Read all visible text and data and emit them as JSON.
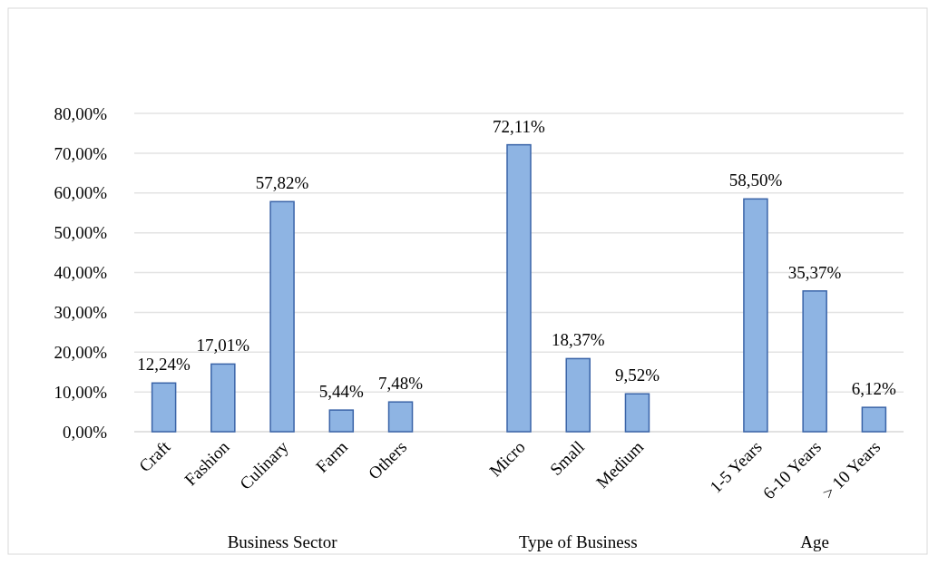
{
  "chart_data": {
    "type": "bar",
    "categories": [
      "Craft",
      "Fashion",
      "Culinary",
      "Farm",
      "Others",
      null,
      "Micro",
      "Small",
      "Medium",
      null,
      "1-5 Years",
      "6-10 Years",
      "> 10 Years"
    ],
    "values": [
      12.24,
      17.01,
      57.82,
      5.44,
      7.48,
      null,
      72.11,
      18.37,
      9.52,
      null,
      58.5,
      35.37,
      6.12
    ],
    "value_labels": [
      "12,24%",
      "17,01%",
      "57,82%",
      "5,44%",
      "7,48%",
      null,
      "72,11%",
      "18,37%",
      "9,52%",
      null,
      "58,50%",
      "35,37%",
      "6,12%"
    ],
    "color": "#8eb4e3",
    "ylim": [
      0,
      80
    ],
    "yticks": [
      {
        "value": 0,
        "label": "0,00%"
      },
      {
        "value": 10,
        "label": "10,00%"
      },
      {
        "value": 20,
        "label": "20,00%"
      },
      {
        "value": 30,
        "label": "30,00%"
      },
      {
        "value": 40,
        "label": "40,00%"
      },
      {
        "value": 50,
        "label": "50,00%"
      },
      {
        "value": 60,
        "label": "60,00%"
      },
      {
        "value": 70,
        "label": "70,00%"
      },
      {
        "value": 80,
        "label": "80,00%"
      }
    ],
    "grid": "y",
    "annotations": [
      "Business Sector",
      "Type of Business",
      "Age"
    ]
  }
}
